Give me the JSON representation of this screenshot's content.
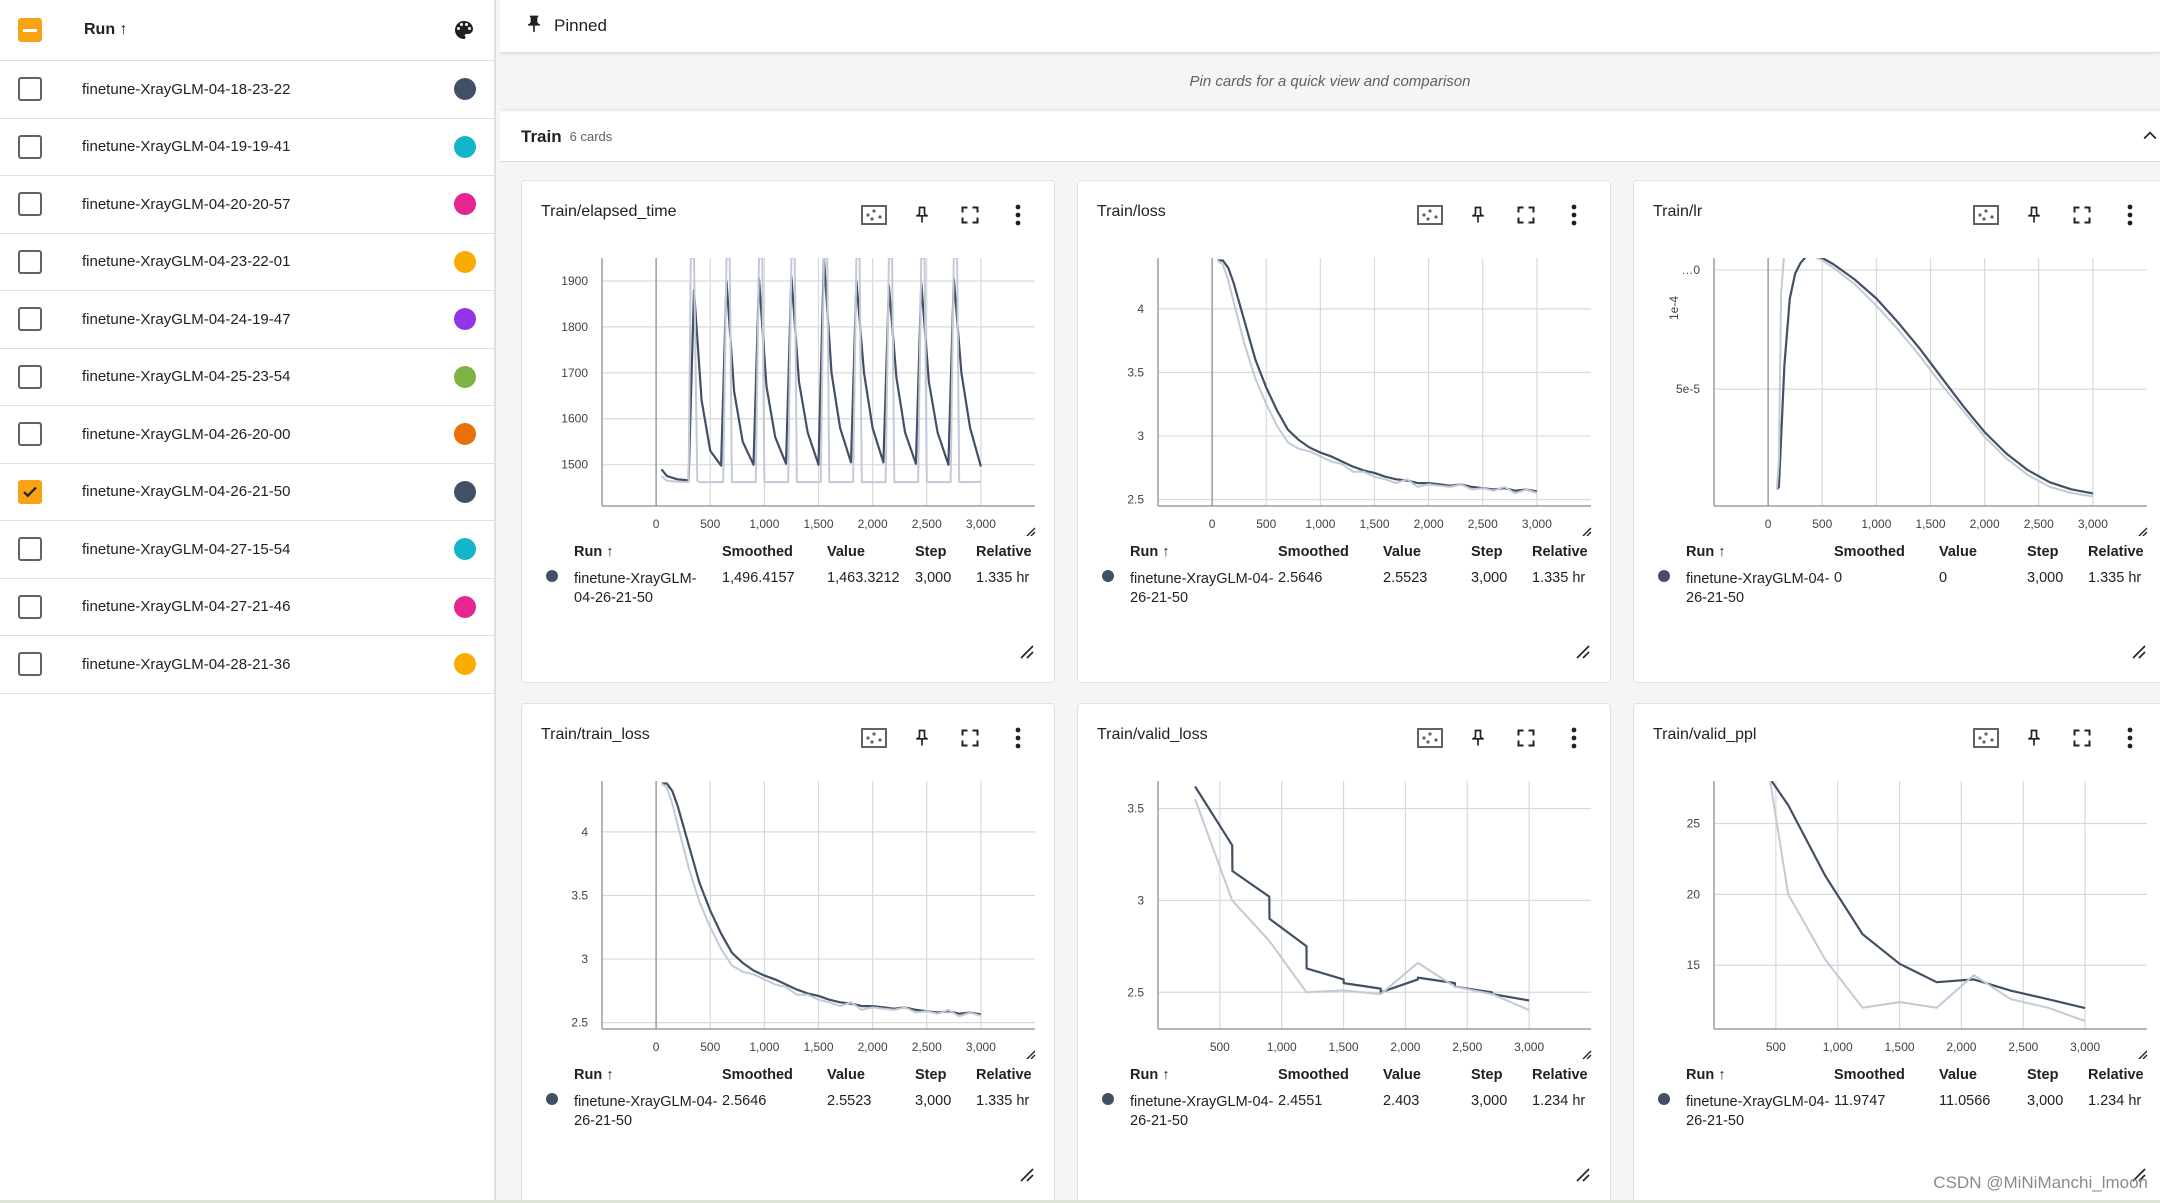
{
  "sidebar": {
    "header_label": "Run ↑",
    "runs": [
      {
        "name": "finetune-XrayGLM-04-18-23-22",
        "color": "#425066",
        "checked": false
      },
      {
        "name": "finetune-XrayGLM-04-19-19-41",
        "color": "#12b5cb",
        "checked": false
      },
      {
        "name": "finetune-XrayGLM-04-20-20-57",
        "color": "#e52592",
        "checked": false
      },
      {
        "name": "finetune-XrayGLM-04-23-22-01",
        "color": "#f9ab00",
        "checked": false
      },
      {
        "name": "finetune-XrayGLM-04-24-19-47",
        "color": "#9334e6",
        "checked": false
      },
      {
        "name": "finetune-XrayGLM-04-25-23-54",
        "color": "#7cb342",
        "checked": false
      },
      {
        "name": "finetune-XrayGLM-04-26-20-00",
        "color": "#e8710a",
        "checked": false
      },
      {
        "name": "finetune-XrayGLM-04-26-21-50",
        "color": "#425066",
        "checked": true
      },
      {
        "name": "finetune-XrayGLM-04-27-15-54",
        "color": "#12b5cb",
        "checked": false
      },
      {
        "name": "finetune-XrayGLM-04-27-21-46",
        "color": "#e52592",
        "checked": false
      },
      {
        "name": "finetune-XrayGLM-04-28-21-36",
        "color": "#f9ab00",
        "checked": false
      }
    ]
  },
  "pinned": {
    "label": "Pinned",
    "hint": "Pin cards for a quick view and comparison"
  },
  "group": {
    "title": "Train",
    "count": "6 cards"
  },
  "table_headers": {
    "run": "Run ↑",
    "smoothed": "Smoothed",
    "value": "Value",
    "step": "Step",
    "relative": "Relative"
  },
  "watermark": "CSDN @MiNiManchi_lmoon",
  "cards": [
    {
      "title": "Train/elapsed_time",
      "run": "finetune-XrayGLM-04-26-21-50",
      "smoothed": "1,496.4157",
      "value": "1,463.3212",
      "step": "3,000",
      "relative": "1.335 hr"
    },
    {
      "title": "Train/loss",
      "run": "finetune-XrayGLM-04-26-21-50",
      "smoothed": "2.5646",
      "value": "2.5523",
      "step": "3,000",
      "relative": "1.335 hr"
    },
    {
      "title": "Train/lr",
      "run": "finetune-XrayGLM-04-26-21-50",
      "smoothed": "0",
      "value": "0",
      "step": "3,000",
      "relative": "1.335 hr"
    },
    {
      "title": "Train/train_loss",
      "run": "finetune-XrayGLM-04-26-21-50",
      "smoothed": "2.5646",
      "value": "2.5523",
      "step": "3,000",
      "relative": "1.335 hr"
    },
    {
      "title": "Train/valid_loss",
      "run": "finetune-XrayGLM-04-26-21-50",
      "smoothed": "2.4551",
      "value": "2.403",
      "step": "3,000",
      "relative": "1.234 hr"
    },
    {
      "title": "Train/valid_ppl",
      "run": "finetune-XrayGLM-04-26-21-50",
      "smoothed": "11.9747",
      "value": "11.0566",
      "step": "3,000",
      "relative": "1.234 hr"
    }
  ],
  "chart_data": [
    {
      "type": "line",
      "title": "Train/elapsed_time",
      "xlim": [
        -500,
        3500
      ],
      "ylim": [
        1410,
        1950
      ],
      "xticks": [
        0,
        500,
        1000,
        1500,
        2000,
        2500,
        3000
      ],
      "xtick_labels": [
        "0",
        "500",
        "1,000",
        "1,500",
        "2,000",
        "2,500",
        "3,000"
      ],
      "yticks": [
        1500,
        1600,
        1700,
        1800,
        1900
      ],
      "ytick_labels": [
        "1500",
        "1600",
        "1700",
        "1800",
        "1900"
      ],
      "series": [
        {
          "role": "smoothed",
          "x": [
            50,
            100,
            200,
            300,
            350,
            420,
            500,
            600,
            650,
            720,
            800,
            900,
            950,
            1020,
            1100,
            1200,
            1250,
            1320,
            1400,
            1500,
            1550,
            1620,
            1700,
            1800,
            1850,
            1920,
            2000,
            2100,
            2150,
            2220,
            2300,
            2400,
            2450,
            2520,
            2600,
            2700,
            2750,
            2820,
            2900,
            3000
          ],
          "y": [
            1490,
            1475,
            1468,
            1466,
            1880,
            1640,
            1530,
            1498,
            1900,
            1660,
            1550,
            1500,
            1905,
            1670,
            1560,
            1502,
            1910,
            1680,
            1570,
            1500,
            1950,
            1700,
            1580,
            1505,
            1900,
            1700,
            1580,
            1505,
            1890,
            1690,
            1570,
            1502,
            1895,
            1680,
            1570,
            1500,
            1905,
            1700,
            1580,
            1496
          ]
        },
        {
          "role": "raw",
          "x": [
            50,
            100,
            200,
            300,
            320,
            350,
            380,
            400,
            450,
            500,
            620,
            650,
            680,
            700,
            750,
            800,
            920,
            950,
            980,
            1000,
            1050,
            1100,
            1220,
            1250,
            1280,
            1300,
            1350,
            1400,
            1520,
            1550,
            1580,
            1600,
            1650,
            1700,
            1820,
            1850,
            1880,
            1900,
            1950,
            2000,
            2120,
            2150,
            2180,
            2200,
            2250,
            2300,
            2420,
            2450,
            2480,
            2500,
            2550,
            2600,
            2720,
            2750,
            2780,
            2800,
            2850,
            2900,
            3000
          ],
          "y": [
            1475,
            1465,
            1463,
            1462,
            1950,
            1950,
            1465,
            1462,
            1462,
            1462,
            1462,
            1950,
            1950,
            1462,
            1462,
            1462,
            1462,
            1950,
            1950,
            1462,
            1462,
            1462,
            1462,
            1950,
            1950,
            1462,
            1462,
            1462,
            1462,
            1950,
            1950,
            1462,
            1462,
            1462,
            1462,
            1950,
            1950,
            1462,
            1462,
            1462,
            1462,
            1950,
            1950,
            1462,
            1462,
            1462,
            1462,
            1950,
            1950,
            1462,
            1462,
            1462,
            1462,
            1950,
            1950,
            1462,
            1462,
            1462,
            1463
          ]
        }
      ]
    },
    {
      "type": "line",
      "title": "Train/loss",
      "xlim": [
        -500,
        3500
      ],
      "ylim": [
        2.45,
        4.4
      ],
      "xticks": [
        0,
        500,
        1000,
        1500,
        2000,
        2500,
        3000
      ],
      "xtick_labels": [
        "0",
        "500",
        "1,000",
        "1,500",
        "2,000",
        "2,500",
        "3,000"
      ],
      "yticks": [
        2.5,
        3,
        3.5,
        4
      ],
      "ytick_labels": [
        "2.5",
        "3",
        "3.5",
        "4"
      ],
      "series": [
        {
          "role": "smoothed",
          "x": [
            50,
            100,
            150,
            200,
            300,
            400,
            500,
            600,
            700,
            800,
            900,
            1000,
            1100,
            1200,
            1300,
            1400,
            1500,
            1600,
            1700,
            1800,
            1900,
            2000,
            2100,
            2200,
            2300,
            2400,
            2500,
            2600,
            2700,
            2800,
            2900,
            3000
          ],
          "y": [
            4.38,
            4.38,
            4.32,
            4.2,
            3.9,
            3.6,
            3.38,
            3.2,
            3.05,
            2.97,
            2.91,
            2.87,
            2.84,
            2.8,
            2.76,
            2.73,
            2.71,
            2.68,
            2.66,
            2.65,
            2.63,
            2.63,
            2.62,
            2.61,
            2.62,
            2.6,
            2.59,
            2.58,
            2.59,
            2.57,
            2.58,
            2.5646
          ]
        },
        {
          "role": "raw",
          "x": [
            50,
            100,
            150,
            200,
            300,
            400,
            500,
            600,
            700,
            800,
            900,
            1000,
            1100,
            1200,
            1300,
            1400,
            1500,
            1600,
            1700,
            1800,
            1900,
            2000,
            2100,
            2200,
            2300,
            2400,
            2500,
            2600,
            2700,
            2800,
            2900,
            3000
          ],
          "y": [
            4.38,
            4.35,
            4.22,
            4.05,
            3.72,
            3.45,
            3.25,
            3.08,
            2.95,
            2.9,
            2.88,
            2.84,
            2.8,
            2.78,
            2.72,
            2.72,
            2.68,
            2.66,
            2.63,
            2.66,
            2.6,
            2.62,
            2.61,
            2.6,
            2.62,
            2.58,
            2.59,
            2.57,
            2.6,
            2.55,
            2.58,
            2.5523
          ]
        }
      ]
    },
    {
      "type": "line",
      "title": "Train/lr",
      "xlim": [
        -500,
        3500
      ],
      "ylim": [
        1e-06,
        0.000105
      ],
      "xticks": [
        0,
        500,
        1000,
        1500,
        2000,
        2500,
        3000
      ],
      "xtick_labels": [
        "0",
        "500",
        "1,000",
        "1,500",
        "2,000",
        "2,500",
        "3,000"
      ],
      "yticks": [
        5e-05,
        0.0001
      ],
      "ytick_labels": [
        "5e-5",
        "…0"
      ],
      "y_scale_label": "1e-4",
      "series": [
        {
          "role": "smoothed",
          "x": [
            80,
            100,
            150,
            200,
            250,
            300,
            350,
            400,
            500,
            600,
            800,
            1000,
            1200,
            1400,
            1600,
            1800,
            2000,
            2200,
            2400,
            2600,
            2800,
            3000
          ],
          "y": [
            8e-06,
            9e-06,
            6e-05,
            8.8e-05,
            9.85e-05,
            0.000103,
            0.0001055,
            0.0001065,
            0.000105,
            0.0001025,
            9.6e-05,
            8.8e-05,
            7.8e-05,
            6.7e-05,
            5.5e-05,
            4.3e-05,
            3.2e-05,
            2.3e-05,
            1.6e-05,
            1.1e-05,
            8e-06,
            6.3e-06
          ]
        },
        {
          "role": "raw",
          "x": [
            80,
            100,
            120,
            150,
            200,
            300,
            400,
            500,
            600,
            800,
            1000,
            1200,
            1400,
            1600,
            1800,
            2000,
            2200,
            2400,
            2600,
            2800,
            3000
          ],
          "y": [
            8e-06,
            2e-05,
            9e-05,
            0.000108,
            0.000108,
            0.0001075,
            0.000106,
            0.000104,
            0.000101,
            9.4e-05,
            8.5e-05,
            7.5e-05,
            6.4e-05,
            5.2e-05,
            4.1e-05,
            3e-05,
            2.1e-05,
            1.4e-05,
            9e-06,
            6.5e-06,
            5e-06
          ]
        }
      ]
    },
    {
      "type": "line",
      "title": "Train/train_loss",
      "xlim": [
        -500,
        3500
      ],
      "ylim": [
        2.45,
        4.4
      ],
      "xticks": [
        0,
        500,
        1000,
        1500,
        2000,
        2500,
        3000
      ],
      "xtick_labels": [
        "0",
        "500",
        "1,000",
        "1,500",
        "2,000",
        "2,500",
        "3,000"
      ],
      "yticks": [
        2.5,
        3,
        3.5,
        4
      ],
      "ytick_labels": [
        "2.5",
        "3",
        "3.5",
        "4"
      ],
      "series": [
        {
          "role": "smoothed",
          "x": [
            50,
            100,
            150,
            200,
            300,
            400,
            500,
            600,
            700,
            800,
            900,
            1000,
            1100,
            1200,
            1300,
            1400,
            1500,
            1600,
            1700,
            1800,
            1900,
            2000,
            2100,
            2200,
            2300,
            2400,
            2500,
            2600,
            2700,
            2800,
            2900,
            3000
          ],
          "y": [
            4.38,
            4.38,
            4.32,
            4.2,
            3.9,
            3.6,
            3.38,
            3.2,
            3.05,
            2.97,
            2.91,
            2.87,
            2.84,
            2.8,
            2.76,
            2.73,
            2.71,
            2.68,
            2.66,
            2.65,
            2.63,
            2.63,
            2.62,
            2.61,
            2.62,
            2.6,
            2.59,
            2.58,
            2.59,
            2.57,
            2.58,
            2.5646
          ]
        },
        {
          "role": "raw",
          "x": [
            50,
            100,
            150,
            200,
            300,
            400,
            500,
            600,
            700,
            800,
            900,
            1000,
            1100,
            1200,
            1300,
            1400,
            1500,
            1600,
            1700,
            1800,
            1900,
            2000,
            2100,
            2200,
            2300,
            2400,
            2500,
            2600,
            2700,
            2800,
            2900,
            3000
          ],
          "y": [
            4.38,
            4.35,
            4.22,
            4.05,
            3.72,
            3.45,
            3.25,
            3.08,
            2.95,
            2.9,
            2.88,
            2.84,
            2.8,
            2.78,
            2.72,
            2.72,
            2.68,
            2.66,
            2.63,
            2.66,
            2.6,
            2.62,
            2.61,
            2.6,
            2.62,
            2.58,
            2.59,
            2.57,
            2.6,
            2.55,
            2.58,
            2.5523
          ]
        }
      ]
    },
    {
      "type": "line",
      "title": "Train/valid_loss",
      "xlim": [
        0,
        3500
      ],
      "ylim": [
        2.3,
        3.65
      ],
      "xticks": [
        500,
        1000,
        1500,
        2000,
        2500,
        3000
      ],
      "xtick_labels": [
        "500",
        "1,000",
        "1,500",
        "2,000",
        "2,500",
        "3,000"
      ],
      "yticks": [
        2.5,
        3,
        3.5
      ],
      "ytick_labels": [
        "2.5",
        "3",
        "3.5"
      ],
      "series": [
        {
          "role": "smoothed",
          "x": [
            300,
            600,
            601,
            900,
            901,
            1200,
            1201,
            1500,
            1501,
            1800,
            1801,
            2100,
            2101,
            2400,
            2401,
            2700,
            2701,
            3000
          ],
          "y": [
            3.62,
            3.3,
            3.16,
            3.02,
            2.9,
            2.75,
            2.63,
            2.57,
            2.55,
            2.52,
            2.5,
            2.57,
            2.58,
            2.55,
            2.53,
            2.5,
            2.49,
            2.4551
          ]
        },
        {
          "role": "raw",
          "x": [
            300,
            600,
            900,
            1200,
            1500,
            1800,
            2100,
            2400,
            2700,
            3000
          ],
          "y": [
            3.55,
            3.0,
            2.78,
            2.5,
            2.51,
            2.49,
            2.66,
            2.53,
            2.49,
            2.403
          ]
        }
      ]
    },
    {
      "type": "line",
      "title": "Train/valid_ppl",
      "xlim": [
        0,
        3500
      ],
      "ylim": [
        10.5,
        28
      ],
      "xticks": [
        500,
        1000,
        1500,
        2000,
        2500,
        3000
      ],
      "xtick_labels": [
        "500",
        "1,000",
        "1,500",
        "2,000",
        "2,500",
        "3,000"
      ],
      "yticks": [
        15,
        20,
        25
      ],
      "ytick_labels": [
        "15",
        "20",
        "25"
      ],
      "series": [
        {
          "role": "smoothed",
          "x": [
            450,
            600,
            900,
            1200,
            1500,
            1800,
            2100,
            2400,
            2700,
            3000
          ],
          "y": [
            28.2,
            26.3,
            21.3,
            17.2,
            15.1,
            13.8,
            14.0,
            13.2,
            12.6,
            11.9747
          ]
        },
        {
          "role": "raw",
          "x": [
            450,
            600,
            900,
            1200,
            1500,
            1800,
            2100,
            2400,
            2700,
            3000
          ],
          "y": [
            28.2,
            20.0,
            15.4,
            12.0,
            12.4,
            12.0,
            14.3,
            12.6,
            12.0,
            11.0566
          ]
        }
      ]
    }
  ]
}
